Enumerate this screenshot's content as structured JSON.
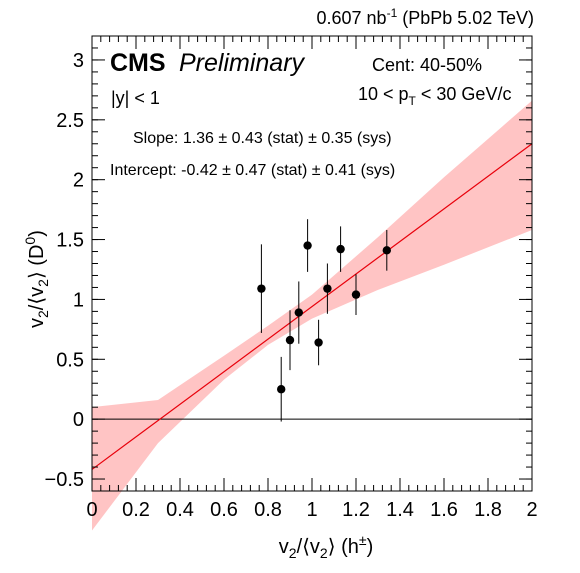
{
  "chart_data": {
    "type": "scatter",
    "header": {
      "lumi_value": "0.607 nb",
      "lumi_exp": "-1",
      "system": " (PbPb 5.02 TeV)"
    },
    "experiment": "CMS",
    "status": "Preliminary",
    "rapidity_label": "|y| < 1",
    "centrality": "Cent: 40-50%",
    "pt_range": {
      "pre": "10 < p",
      "sub": "T",
      "post": " < 30 GeV/c"
    },
    "slope_text": "Slope: 1.36 ± 0.43 (stat) ± 0.35 (sys)",
    "intercept_text": "Intercept: -0.42 ± 0.47 (stat) ± 0.41 (sys)",
    "xlabel": {
      "p1": "v",
      "s1": "2",
      "p2": "/⟨v",
      "s2": "2",
      "p3": "⟩ (h",
      "sup": "±",
      "p4": ")"
    },
    "ylabel": {
      "p1": "v",
      "s1": "2",
      "p2": "/⟨v",
      "s2": "2",
      "p3": "⟩ (D",
      "sup": "0",
      "p4": ")"
    },
    "xlim": [
      0,
      2
    ],
    "ylim": [
      -0.6,
      3.2
    ],
    "xticks": [
      "0",
      "0.2",
      "0.4",
      "0.6",
      "0.8",
      "1",
      "1.2",
      "1.4",
      "1.6",
      "1.8",
      "2"
    ],
    "xtick_values": [
      0,
      0.2,
      0.4,
      0.6,
      0.8,
      1,
      1.2,
      1.4,
      1.6,
      1.8,
      2
    ],
    "yticks": [
      "−0.5",
      "0",
      "0.5",
      "1",
      "1.5",
      "2",
      "2.5",
      "3"
    ],
    "ytick_values": [
      -0.5,
      0,
      0.5,
      1,
      1.5,
      2,
      2.5,
      3
    ],
    "grid": false,
    "zero_line": 0,
    "points": [
      {
        "x": 0.77,
        "y": 1.09,
        "err": 0.37
      },
      {
        "x": 0.86,
        "y": 0.25,
        "err": 0.27
      },
      {
        "x": 0.9,
        "y": 0.66,
        "err": 0.25
      },
      {
        "x": 0.94,
        "y": 0.89,
        "err": 0.26
      },
      {
        "x": 0.98,
        "y": 1.45,
        "err": 0.22
      },
      {
        "x": 1.03,
        "y": 0.64,
        "err": 0.19
      },
      {
        "x": 1.07,
        "y": 1.09,
        "err": 0.21
      },
      {
        "x": 1.13,
        "y": 1.42,
        "err": 0.19
      },
      {
        "x": 1.2,
        "y": 1.04,
        "err": 0.17
      },
      {
        "x": 1.34,
        "y": 1.41,
        "err": 0.17
      }
    ],
    "fit": {
      "slope": 1.36,
      "intercept": -0.42
    },
    "band": [
      {
        "x": 0.0,
        "lo": -0.93,
        "hi": 0.1
      },
      {
        "x": 0.3,
        "lo": -0.2,
        "hi": 0.16
      },
      {
        "x": 0.6,
        "lo": 0.33,
        "hi": 0.53
      },
      {
        "x": 0.8,
        "lo": 0.62,
        "hi": 0.78
      },
      {
        "x": 1.0,
        "lo": 0.84,
        "hi": 1.04
      },
      {
        "x": 1.3,
        "lo": 1.08,
        "hi": 1.52
      },
      {
        "x": 1.6,
        "lo": 1.29,
        "hi": 2.02
      },
      {
        "x": 2.0,
        "lo": 1.58,
        "hi": 2.66
      }
    ],
    "colors": {
      "fit_line": "#e8000b",
      "band": "#ffc4c4",
      "points": "#000000",
      "axes": "#000000"
    }
  }
}
